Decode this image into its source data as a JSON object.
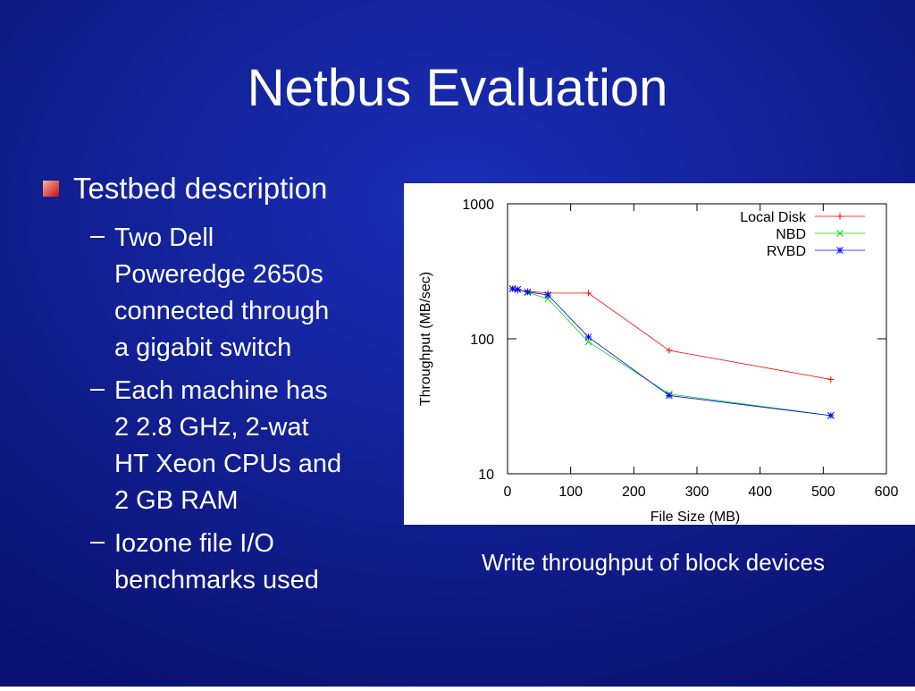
{
  "title": "Netbus Evaluation",
  "bullets": [
    {
      "text": "Testbed description",
      "sub": [
        [
          "Two Dell",
          "Poweredge 2650s",
          "connected through",
          "a gigabit switch"
        ],
        [
          "Each machine has",
          "2 2.8 GHz, 2-wat",
          "HT Xeon CPUs and",
          "2 GB RAM"
        ],
        [
          "Iozone file I/O",
          "benchmarks used"
        ]
      ]
    }
  ],
  "caption": "Write throughput of block devices",
  "chart_data": {
    "type": "line",
    "x_label": "File Size (MB)",
    "y_label": "Throughput (MB/sec)",
    "x": [
      8,
      16,
      32,
      64,
      128,
      256,
      512
    ],
    "series": [
      {
        "name": "Local Disk",
        "color": "#ff0000",
        "marker": "plus",
        "values": [
          235,
          228,
          225,
          218,
          218,
          82,
          50
        ]
      },
      {
        "name": "NBD",
        "color": "#00dd00",
        "marker": "cross",
        "values": [
          235,
          232,
          220,
          198,
          95,
          39,
          27
        ]
      },
      {
        "name": "RVBD",
        "color": "#0000ff",
        "marker": "star",
        "values": [
          235,
          232,
          222,
          211,
          103,
          38,
          27
        ]
      }
    ],
    "xlim": [
      0,
      600
    ],
    "xticks": [
      0,
      100,
      200,
      300,
      400,
      500,
      600
    ],
    "ylim": [
      10,
      1000
    ],
    "yticks": [
      10,
      100,
      1000
    ],
    "y_log": true,
    "legend": "top-right",
    "grid": false
  }
}
